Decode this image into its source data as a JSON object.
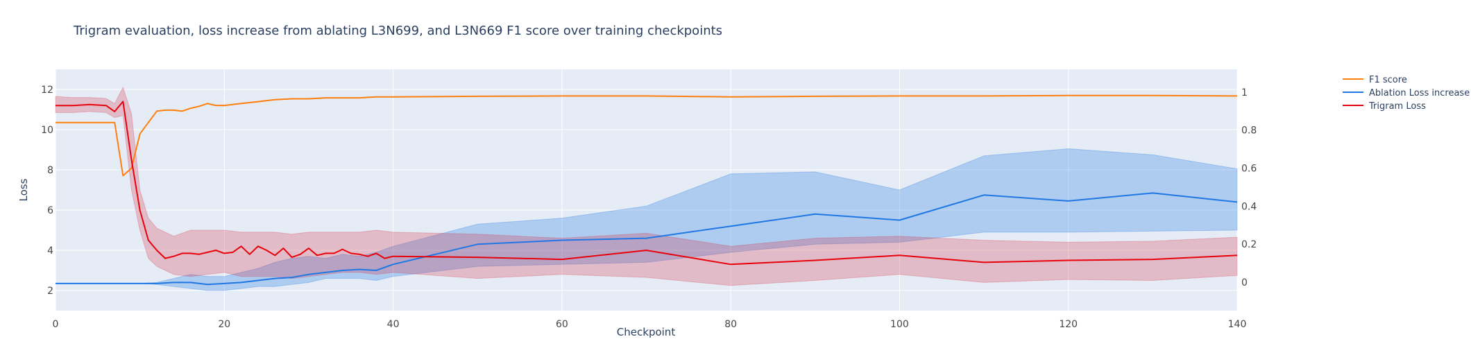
{
  "chart_data": {
    "type": "line",
    "title": "Trigram evaluation, loss increase from ablating L3N699, and L3N669 F1 score over training checkpoints",
    "xlabel": "Checkpoint",
    "ylabel": "Loss",
    "y2label": "",
    "xlim": [
      0,
      140
    ],
    "ylim": [
      1,
      13
    ],
    "y2lim": [
      -0.15,
      1.12
    ],
    "x_ticks": [
      0,
      20,
      40,
      60,
      80,
      100,
      120,
      140
    ],
    "y_ticks": [
      2,
      4,
      6,
      8,
      10,
      12
    ],
    "y2_ticks": [
      0,
      0.2,
      0.4,
      0.6,
      0.8,
      1
    ],
    "legend_position": "top-right",
    "grid": true,
    "series": [
      {
        "name": "F1 score",
        "color": "#ff7f0e",
        "axis": "y2",
        "x": [
          0,
          1,
          2,
          3,
          4,
          5,
          6,
          7,
          8,
          9,
          10,
          11,
          12,
          13,
          14,
          15,
          16,
          17,
          18,
          19,
          20,
          22,
          24,
          26,
          28,
          30,
          32,
          34,
          36,
          38,
          40,
          50,
          60,
          70,
          80,
          90,
          100,
          110,
          120,
          130,
          140
        ],
        "y": [
          0.84,
          0.84,
          0.84,
          0.84,
          0.84,
          0.84,
          0.84,
          0.84,
          0.56,
          0.6,
          0.78,
          0.84,
          0.9,
          0.905,
          0.905,
          0.9,
          0.915,
          0.925,
          0.94,
          0.93,
          0.93,
          0.94,
          0.95,
          0.96,
          0.965,
          0.965,
          0.97,
          0.97,
          0.97,
          0.975,
          0.975,
          0.978,
          0.98,
          0.98,
          0.975,
          0.978,
          0.98,
          0.98,
          0.982,
          0.982,
          0.98
        ]
      },
      {
        "name": "Ablation Loss increase",
        "color": "#1f77e4",
        "axis": "y",
        "x": [
          0,
          5,
          10,
          12,
          14,
          16,
          18,
          20,
          22,
          24,
          26,
          28,
          30,
          32,
          34,
          36,
          38,
          40,
          50,
          60,
          70,
          80,
          90,
          100,
          110,
          120,
          130,
          140
        ],
        "y": [
          2.35,
          2.35,
          2.35,
          2.35,
          2.4,
          2.4,
          2.3,
          2.35,
          2.4,
          2.5,
          2.6,
          2.65,
          2.8,
          2.9,
          3.0,
          3.05,
          3.0,
          3.3,
          4.3,
          4.5,
          4.6,
          5.2,
          5.8,
          5.5,
          6.75,
          6.45,
          6.85,
          6.4
        ]
      },
      {
        "name": "Trigram Loss",
        "color": "#e8000b",
        "axis": "y",
        "x": [
          0,
          2,
          4,
          6,
          7,
          8,
          9,
          10,
          11,
          12,
          13,
          14,
          15,
          16,
          17,
          18,
          19,
          20,
          21,
          22,
          23,
          24,
          25,
          26,
          27,
          28,
          29,
          30,
          31,
          32,
          33,
          34,
          35,
          36,
          37,
          38,
          39,
          40,
          50,
          60,
          70,
          80,
          90,
          100,
          110,
          120,
          130,
          140
        ],
        "y": [
          11.2,
          11.2,
          11.25,
          11.2,
          10.9,
          11.4,
          8.5,
          6.0,
          4.5,
          4.0,
          3.6,
          3.7,
          3.85,
          3.85,
          3.8,
          3.9,
          4.0,
          3.85,
          3.9,
          4.2,
          3.8,
          4.2,
          4.0,
          3.75,
          4.1,
          3.65,
          3.8,
          4.1,
          3.75,
          3.85,
          3.85,
          4.05,
          3.85,
          3.8,
          3.7,
          3.85,
          3.6,
          3.7,
          3.65,
          3.55,
          4.0,
          3.3,
          3.5,
          3.75,
          3.4,
          3.5,
          3.55,
          3.75
        ]
      }
    ],
    "bands": [
      {
        "series": "Ablation Loss increase",
        "color": "rgba(31,119,228,0.28)",
        "x": [
          0,
          5,
          10,
          12,
          14,
          16,
          18,
          20,
          22,
          24,
          26,
          28,
          30,
          32,
          34,
          36,
          38,
          40,
          50,
          60,
          70,
          80,
          90,
          100,
          110,
          120,
          130,
          140
        ],
        "upper": [
          2.35,
          2.35,
          2.35,
          2.4,
          2.6,
          2.8,
          2.7,
          2.7,
          2.9,
          3.1,
          3.4,
          3.6,
          3.7,
          3.6,
          3.8,
          3.7,
          3.9,
          4.2,
          5.3,
          5.6,
          6.2,
          7.8,
          7.9,
          7.0,
          8.7,
          9.05,
          8.75,
          8.05
        ],
        "lower": [
          2.35,
          2.35,
          2.35,
          2.3,
          2.2,
          2.1,
          2.0,
          2.0,
          2.1,
          2.2,
          2.2,
          2.3,
          2.4,
          2.6,
          2.6,
          2.6,
          2.5,
          2.7,
          3.2,
          3.3,
          3.4,
          3.9,
          4.3,
          4.4,
          4.9,
          4.9,
          4.95,
          5.0
        ]
      },
      {
        "series": "Trigram Loss",
        "color": "rgba(216,40,60,0.25)",
        "x": [
          0,
          2,
          4,
          6,
          7,
          8,
          9,
          10,
          11,
          12,
          14,
          16,
          18,
          20,
          22,
          24,
          26,
          28,
          30,
          32,
          34,
          36,
          38,
          40,
          50,
          60,
          70,
          80,
          90,
          100,
          110,
          120,
          130,
          140
        ],
        "upper": [
          11.65,
          11.6,
          11.6,
          11.55,
          11.3,
          12.1,
          10.8,
          7.0,
          5.6,
          5.1,
          4.7,
          5.0,
          5.0,
          5.0,
          4.9,
          4.9,
          4.9,
          4.8,
          4.9,
          4.9,
          4.9,
          4.9,
          5.0,
          4.9,
          4.8,
          4.6,
          4.85,
          4.2,
          4.6,
          4.7,
          4.5,
          4.4,
          4.45,
          4.65
        ],
        "lower": [
          10.85,
          10.85,
          10.9,
          10.85,
          10.6,
          10.7,
          7.0,
          5.0,
          3.6,
          3.2,
          2.8,
          2.7,
          2.8,
          2.9,
          2.7,
          2.7,
          2.7,
          2.6,
          2.7,
          2.8,
          2.9,
          2.9,
          2.8,
          2.9,
          2.6,
          2.8,
          2.65,
          2.25,
          2.5,
          2.8,
          2.4,
          2.55,
          2.5,
          2.75
        ]
      }
    ]
  }
}
